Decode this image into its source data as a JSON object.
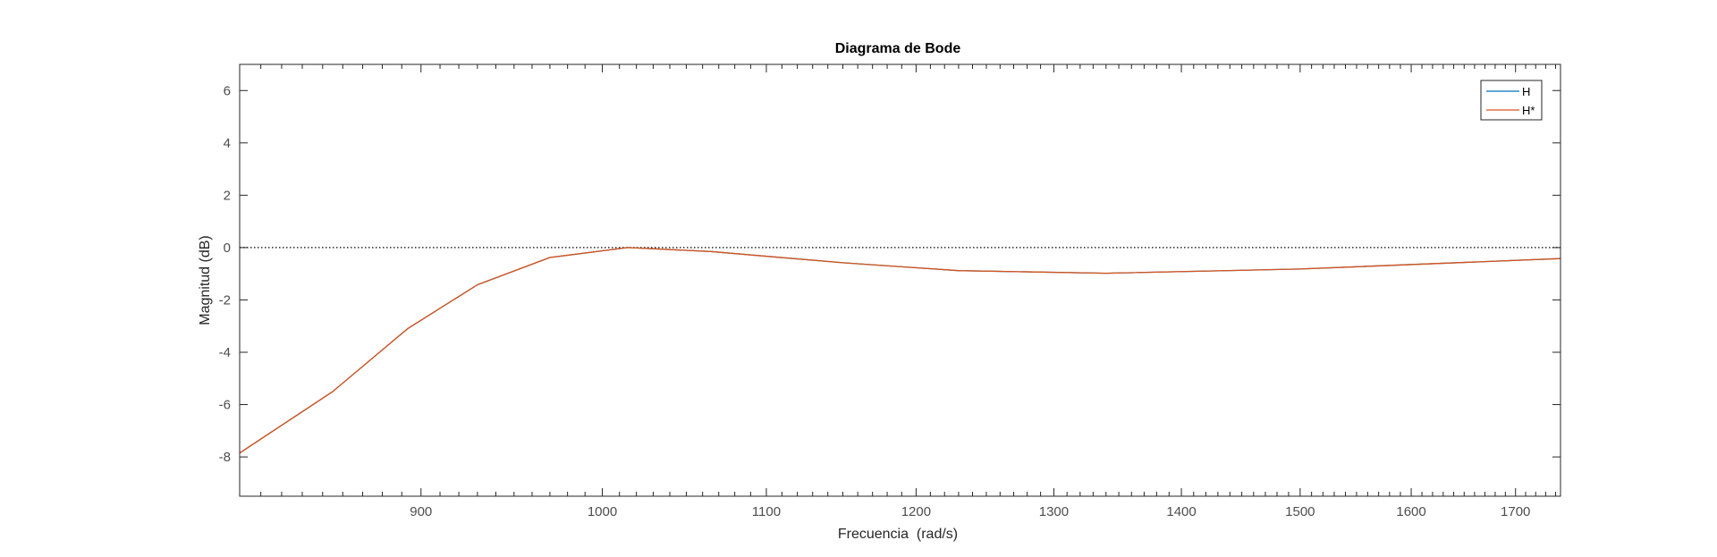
{
  "chart_data": {
    "type": "line",
    "title": "Diagrama de Bode",
    "xlabel": "Frecuencia  (rad/s)",
    "ylabel": "Magnitud (dB)",
    "xlim": [
      810,
      1745
    ],
    "ylim": [
      -9.5,
      7
    ],
    "x_scale": "log",
    "x_ticks": [
      900,
      1000,
      1100,
      1200,
      1300,
      1400,
      1500,
      1600,
      1700
    ],
    "y_ticks": [
      6,
      4,
      2,
      0,
      -2,
      -4,
      -6,
      -8
    ],
    "reference_line": {
      "y": 0,
      "style": "dotted",
      "color": "#000000"
    },
    "grid": false,
    "legend_position": "top-right",
    "series": [
      {
        "name": "H",
        "color": "#0072bd",
        "x": [
          810,
          855,
          893,
          930,
          970,
          1015,
          1065,
          1150,
          1230,
          1340,
          1500,
          1745
        ],
        "y": [
          -7.85,
          -5.5,
          -3.1,
          -1.42,
          -0.38,
          0.0,
          -0.15,
          -0.58,
          -0.88,
          -0.98,
          -0.82,
          -0.42
        ]
      },
      {
        "name": "H*",
        "color": "#d95319",
        "x": [
          810,
          855,
          893,
          930,
          970,
          1015,
          1065,
          1150,
          1230,
          1340,
          1500,
          1745
        ],
        "y": [
          -7.85,
          -5.5,
          -3.1,
          -1.42,
          -0.38,
          0.0,
          -0.15,
          -0.58,
          -0.88,
          -0.98,
          -0.82,
          -0.42
        ]
      }
    ]
  }
}
